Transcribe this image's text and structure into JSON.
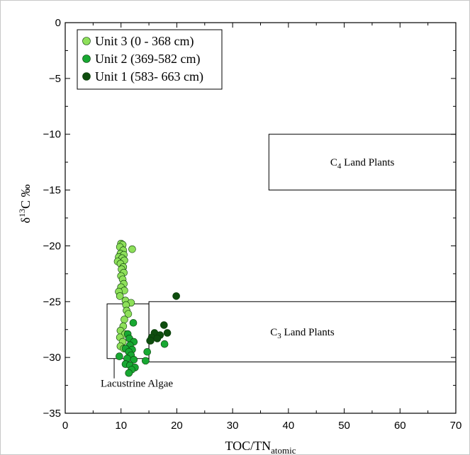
{
  "chart_data": {
    "type": "scatter",
    "xlabel": {
      "main": "TOC/TN",
      "sub": "atomic"
    },
    "ylabel": {
      "delta": "δ",
      "sup": "13",
      "main": "C ‰"
    },
    "xlim": [
      0,
      70
    ],
    "ylim": [
      -35,
      0
    ],
    "xticks": [
      0,
      10,
      20,
      30,
      40,
      50,
      60,
      70
    ],
    "yticks": [
      0,
      -5,
      -10,
      -15,
      -20,
      -25,
      -30,
      -35
    ],
    "xtick_labels": [
      "0",
      "10",
      "20",
      "30",
      "40",
      "50",
      "60",
      "70"
    ],
    "ytick_labels": [
      "0",
      "−5",
      "−10",
      "−15",
      "−20",
      "−25",
      "−30",
      "−35"
    ],
    "legend": {
      "position": "top-left"
    },
    "series": [
      {
        "name": "Unit 3 (0 - 368 cm)",
        "color": "#8ee05a",
        "points": [
          [
            10.0,
            -19.8
          ],
          [
            10.3,
            -19.9
          ],
          [
            9.8,
            -20.1
          ],
          [
            10.4,
            -20.4
          ],
          [
            12.0,
            -20.3
          ],
          [
            9.9,
            -20.7
          ],
          [
            10.5,
            -20.8
          ],
          [
            9.6,
            -21.0
          ],
          [
            10.2,
            -21.1
          ],
          [
            9.4,
            -21.4
          ],
          [
            10.6,
            -21.3
          ],
          [
            9.9,
            -21.6
          ],
          [
            10.4,
            -21.9
          ],
          [
            10.1,
            -22.1
          ],
          [
            10.5,
            -22.4
          ],
          [
            10.0,
            -22.7
          ],
          [
            10.3,
            -23.0
          ],
          [
            10.5,
            -23.4
          ],
          [
            10.0,
            -23.7
          ],
          [
            10.6,
            -24.0
          ],
          [
            9.6,
            -24.1
          ],
          [
            9.8,
            -24.5
          ],
          [
            10.8,
            -24.9
          ],
          [
            11.8,
            -25.1
          ],
          [
            10.9,
            -25.3
          ],
          [
            11.0,
            -25.8
          ],
          [
            11.3,
            -26.1
          ],
          [
            10.6,
            -26.6
          ],
          [
            10.4,
            -27.2
          ],
          [
            9.9,
            -27.6
          ],
          [
            10.7,
            -27.9
          ],
          [
            9.8,
            -28.2
          ],
          [
            10.3,
            -28.6
          ],
          [
            9.9,
            -29.0
          ],
          [
            10.5,
            -29.2
          ]
        ]
      },
      {
        "name": "Unit 2 (369-582 cm)",
        "color": "#18a832",
        "points": [
          [
            12.2,
            -26.9
          ],
          [
            11.2,
            -27.9
          ],
          [
            11.5,
            -28.3
          ],
          [
            12.3,
            -28.6
          ],
          [
            11.6,
            -28.9
          ],
          [
            10.8,
            -29.2
          ],
          [
            12.0,
            -29.3
          ],
          [
            11.4,
            -29.5
          ],
          [
            11.8,
            -29.8
          ],
          [
            9.7,
            -29.9
          ],
          [
            11.1,
            -30.1
          ],
          [
            12.3,
            -30.2
          ],
          [
            14.7,
            -29.5
          ],
          [
            14.4,
            -30.3
          ],
          [
            10.8,
            -30.6
          ],
          [
            11.6,
            -30.7
          ],
          [
            12.5,
            -30.9
          ],
          [
            11.9,
            -31.1
          ],
          [
            11.4,
            -31.4
          ],
          [
            15.2,
            -28.5
          ],
          [
            17.8,
            -28.8
          ]
        ]
      },
      {
        "name": "Unit 1 (583- 663 cm)",
        "color": "#0e4d0e",
        "points": [
          [
            19.9,
            -24.5
          ],
          [
            17.7,
            -27.1
          ],
          [
            16.0,
            -27.8
          ],
          [
            17.0,
            -28.0
          ],
          [
            18.3,
            -27.8
          ],
          [
            15.5,
            -28.2
          ],
          [
            16.5,
            -28.3
          ],
          [
            15.3,
            -28.5
          ]
        ]
      }
    ],
    "regions": [
      {
        "label": {
          "main": "C",
          "sub": "4",
          "rest": " Land Plants"
        },
        "x_range": [
          36.5,
          70
        ],
        "y_range": [
          -15,
          -10
        ]
      },
      {
        "label": {
          "main": "C",
          "sub": "3",
          "rest": " Land Plants"
        },
        "x_range": [
          15,
          70
        ],
        "y_range": [
          -30.4,
          -25
        ]
      },
      {
        "label": {
          "main": "Lacustrine Algae",
          "sub": "",
          "rest": ""
        },
        "x_range": [
          7.5,
          15
        ],
        "y_range": [
          -30.1,
          -25.2
        ]
      }
    ]
  }
}
